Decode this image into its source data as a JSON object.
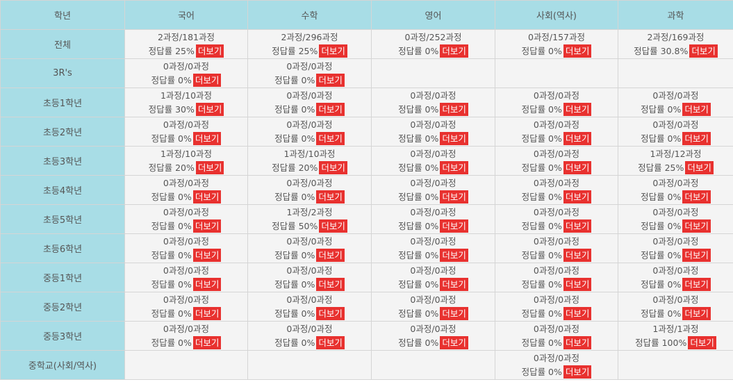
{
  "headers": [
    "학년",
    "국어",
    "수학",
    "영어",
    "사회(역사)",
    "과학"
  ],
  "more_label": "더보기",
  "rows": [
    {
      "label": "전체",
      "cells": [
        {
          "count": "2과정/181과정",
          "rate": "정답률 25%"
        },
        {
          "count": "2과정/296과정",
          "rate": "정답률 25%"
        },
        {
          "count": "0과정/252과정",
          "rate": "정답률 0%"
        },
        {
          "count": "0과정/157과정",
          "rate": "정답률 0%"
        },
        {
          "count": "2과정/169과정",
          "rate": "정답률 30.8%"
        }
      ]
    },
    {
      "label": "3R's",
      "cells": [
        {
          "count": "0과정/0과정",
          "rate": "정답률 0%"
        },
        {
          "count": "0과정/0과정",
          "rate": "정답률 0%"
        },
        null,
        null,
        null
      ]
    },
    {
      "label": "초등1학년",
      "cells": [
        {
          "count": "1과정/10과정",
          "rate": "정답률 30%"
        },
        {
          "count": "0과정/0과정",
          "rate": "정답률 0%"
        },
        {
          "count": "0과정/0과정",
          "rate": "정답률 0%"
        },
        {
          "count": "0과정/0과정",
          "rate": "정답률 0%"
        },
        {
          "count": "0과정/0과정",
          "rate": "정답률 0%"
        }
      ]
    },
    {
      "label": "초등2학년",
      "cells": [
        {
          "count": "0과정/0과정",
          "rate": "정답률 0%"
        },
        {
          "count": "0과정/0과정",
          "rate": "정답률 0%"
        },
        {
          "count": "0과정/0과정",
          "rate": "정답률 0%"
        },
        {
          "count": "0과정/0과정",
          "rate": "정답률 0%"
        },
        {
          "count": "0과정/0과정",
          "rate": "정답률 0%"
        }
      ]
    },
    {
      "label": "초등3학년",
      "cells": [
        {
          "count": "1과정/10과정",
          "rate": "정답률 20%"
        },
        {
          "count": "1과정/10과정",
          "rate": "정답률 20%"
        },
        {
          "count": "0과정/0과정",
          "rate": "정답률 0%"
        },
        {
          "count": "0과정/0과정",
          "rate": "정답률 0%"
        },
        {
          "count": "1과정/12과정",
          "rate": "정답률 25%"
        }
      ]
    },
    {
      "label": "초등4학년",
      "cells": [
        {
          "count": "0과정/0과정",
          "rate": "정답률 0%"
        },
        {
          "count": "0과정/0과정",
          "rate": "정답률 0%"
        },
        {
          "count": "0과정/0과정",
          "rate": "정답률 0%"
        },
        {
          "count": "0과정/0과정",
          "rate": "정답률 0%"
        },
        {
          "count": "0과정/0과정",
          "rate": "정답률 0%"
        }
      ]
    },
    {
      "label": "초등5학년",
      "cells": [
        {
          "count": "0과정/0과정",
          "rate": "정답률 0%"
        },
        {
          "count": "1과정/2과정",
          "rate": "정답률 50%"
        },
        {
          "count": "0과정/0과정",
          "rate": "정답률 0%"
        },
        {
          "count": "0과정/0과정",
          "rate": "정답률 0%"
        },
        {
          "count": "0과정/0과정",
          "rate": "정답률 0%"
        }
      ]
    },
    {
      "label": "초등6학년",
      "cells": [
        {
          "count": "0과정/0과정",
          "rate": "정답률 0%"
        },
        {
          "count": "0과정/0과정",
          "rate": "정답률 0%"
        },
        {
          "count": "0과정/0과정",
          "rate": "정답률 0%"
        },
        {
          "count": "0과정/0과정",
          "rate": "정답률 0%"
        },
        {
          "count": "0과정/0과정",
          "rate": "정답률 0%"
        }
      ]
    },
    {
      "label": "중등1학년",
      "cells": [
        {
          "count": "0과정/0과정",
          "rate": "정답률 0%"
        },
        {
          "count": "0과정/0과정",
          "rate": "정답률 0%"
        },
        {
          "count": "0과정/0과정",
          "rate": "정답률 0%"
        },
        {
          "count": "0과정/0과정",
          "rate": "정답률 0%"
        },
        {
          "count": "0과정/0과정",
          "rate": "정답률 0%"
        }
      ]
    },
    {
      "label": "중등2학년",
      "cells": [
        {
          "count": "0과정/0과정",
          "rate": "정답률 0%"
        },
        {
          "count": "0과정/0과정",
          "rate": "정답률 0%"
        },
        {
          "count": "0과정/0과정",
          "rate": "정답률 0%"
        },
        {
          "count": "0과정/0과정",
          "rate": "정답률 0%"
        },
        {
          "count": "0과정/0과정",
          "rate": "정답률 0%"
        }
      ]
    },
    {
      "label": "중등3학년",
      "cells": [
        {
          "count": "0과정/0과정",
          "rate": "정답률 0%"
        },
        {
          "count": "0과정/0과정",
          "rate": "정답률 0%"
        },
        {
          "count": "0과정/0과정",
          "rate": "정답률 0%"
        },
        {
          "count": "0과정/0과정",
          "rate": "정답률 0%"
        },
        {
          "count": "1과정/1과정",
          "rate": "정답률 100%"
        }
      ]
    },
    {
      "label": "중학교(사회/역사)",
      "cells": [
        null,
        null,
        null,
        {
          "count": "0과정/0과정",
          "rate": "정답률 0%"
        },
        null
      ]
    }
  ],
  "colors": {
    "header_bg": "#a8dde6",
    "cell_bg": "#f4f4f4",
    "more_bg": "#e8312f"
  }
}
